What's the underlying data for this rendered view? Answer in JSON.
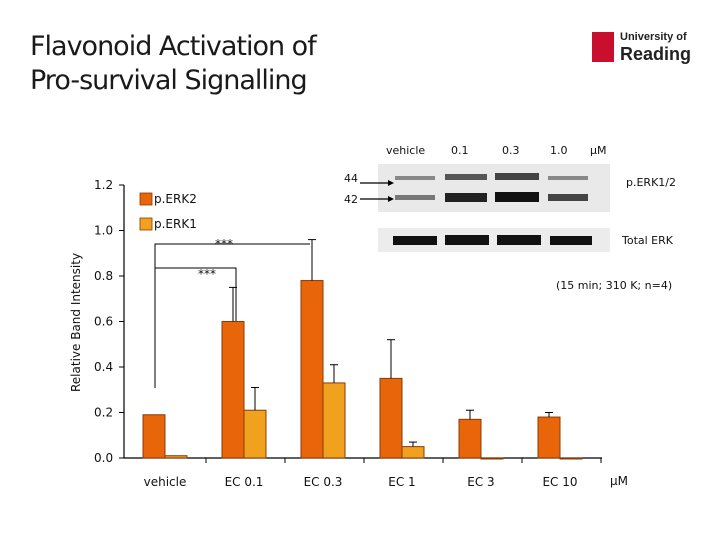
{
  "slide": {
    "title_line1": "Flavonoid Activation of",
    "title_line2": "Pro-survival Signalling",
    "logo_line1": "University of",
    "logo_line2": "Reading"
  },
  "blot": {
    "lane_labels": [
      "vehicle",
      "0.1",
      "0.3",
      "1.0"
    ],
    "unit": "μM",
    "kda_44": "44",
    "kda_42": "42",
    "label_perk": "p.ERK1/2",
    "label_total": "Total ERK",
    "conditions": "(15 min; 310 K; n=4)"
  },
  "colors": {
    "perk2": "#e8650a",
    "perk1": "#f0a21e",
    "bar_dark": "#8a3a08"
  },
  "chart_data": {
    "type": "bar",
    "title": "",
    "ylabel": "Relative Band Intensity",
    "xlabel": "μM",
    "ylim": [
      0,
      1.2
    ],
    "yticks": [
      "0.0",
      "0.2",
      "0.4",
      "0.6",
      "0.8",
      "1.0",
      "1.2"
    ],
    "ytick_values": [
      0,
      0.2,
      0.4,
      0.6,
      0.8,
      1.0,
      1.2
    ],
    "categories": [
      "vehicle",
      "EC 0.1",
      "EC 0.3",
      "EC 1",
      "EC 3",
      "EC 10"
    ],
    "series": [
      {
        "name": "p.ERK2",
        "values": [
          0.19,
          0.6,
          0.78,
          0.35,
          0.17,
          0.18
        ],
        "errors": [
          0.0,
          0.15,
          0.18,
          0.17,
          0.04,
          0.02
        ]
      },
      {
        "name": "p.ERK1",
        "values": [
          0.01,
          0.21,
          0.33,
          0.05,
          0.0,
          0.0
        ],
        "errors": [
          0.0,
          0.1,
          0.08,
          0.02,
          0.0,
          0.0
        ]
      }
    ],
    "annotations": [
      "***",
      "***"
    ]
  }
}
